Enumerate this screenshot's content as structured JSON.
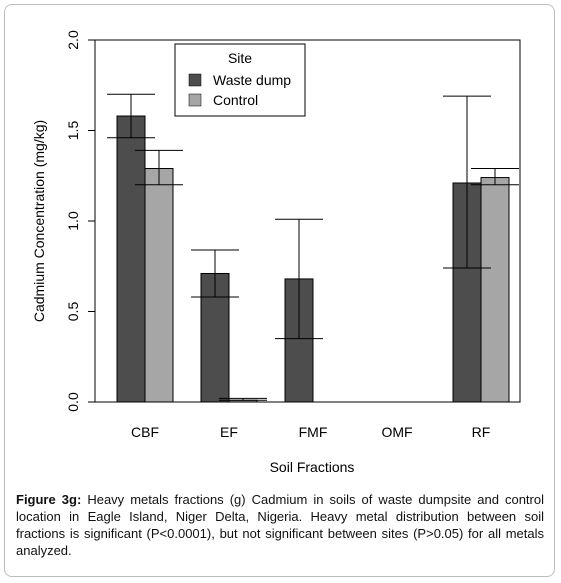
{
  "chart_data": {
    "type": "bar",
    "ylabel": "Cadmium Concentration (mg/kg)",
    "xlabel": "Soil Fractions",
    "ylim": [
      0,
      2.0
    ],
    "yticks": [
      "0.0",
      "0.5",
      "1.0",
      "1.5",
      "2.0"
    ],
    "categories": [
      "CBF",
      "EF",
      "FMF",
      "OMF",
      "RF"
    ],
    "legend": {
      "title": "Site",
      "placement": "top-left"
    },
    "series": [
      {
        "name": "Waste dump",
        "color": "#4d4d4d",
        "values": [
          1.58,
          0.71,
          0.68,
          0.0,
          1.21
        ],
        "error_low": [
          1.46,
          0.58,
          0.35,
          0.0,
          0.74
        ],
        "error_high": [
          1.7,
          0.84,
          1.01,
          0.0,
          1.69
        ]
      },
      {
        "name": "Control",
        "color": "#a6a6a6",
        "values": [
          1.29,
          0.01,
          0.0,
          0.0,
          1.24
        ],
        "error_low": [
          1.2,
          0.01,
          0.0,
          0.0,
          1.2
        ],
        "error_high": [
          1.39,
          0.02,
          0.0,
          0.0,
          1.29
        ]
      }
    ]
  },
  "caption": {
    "label": "Figure 3g:",
    "text": "Heavy metals fractions (g) Cadmium in soils of waste dumpsite and control location in Eagle Island, Niger Delta, Nigeria. Heavy metal distribution between soil fractions is significant (P<0.0001), but not significant between sites (P>0.05) for all metals analyzed."
  }
}
